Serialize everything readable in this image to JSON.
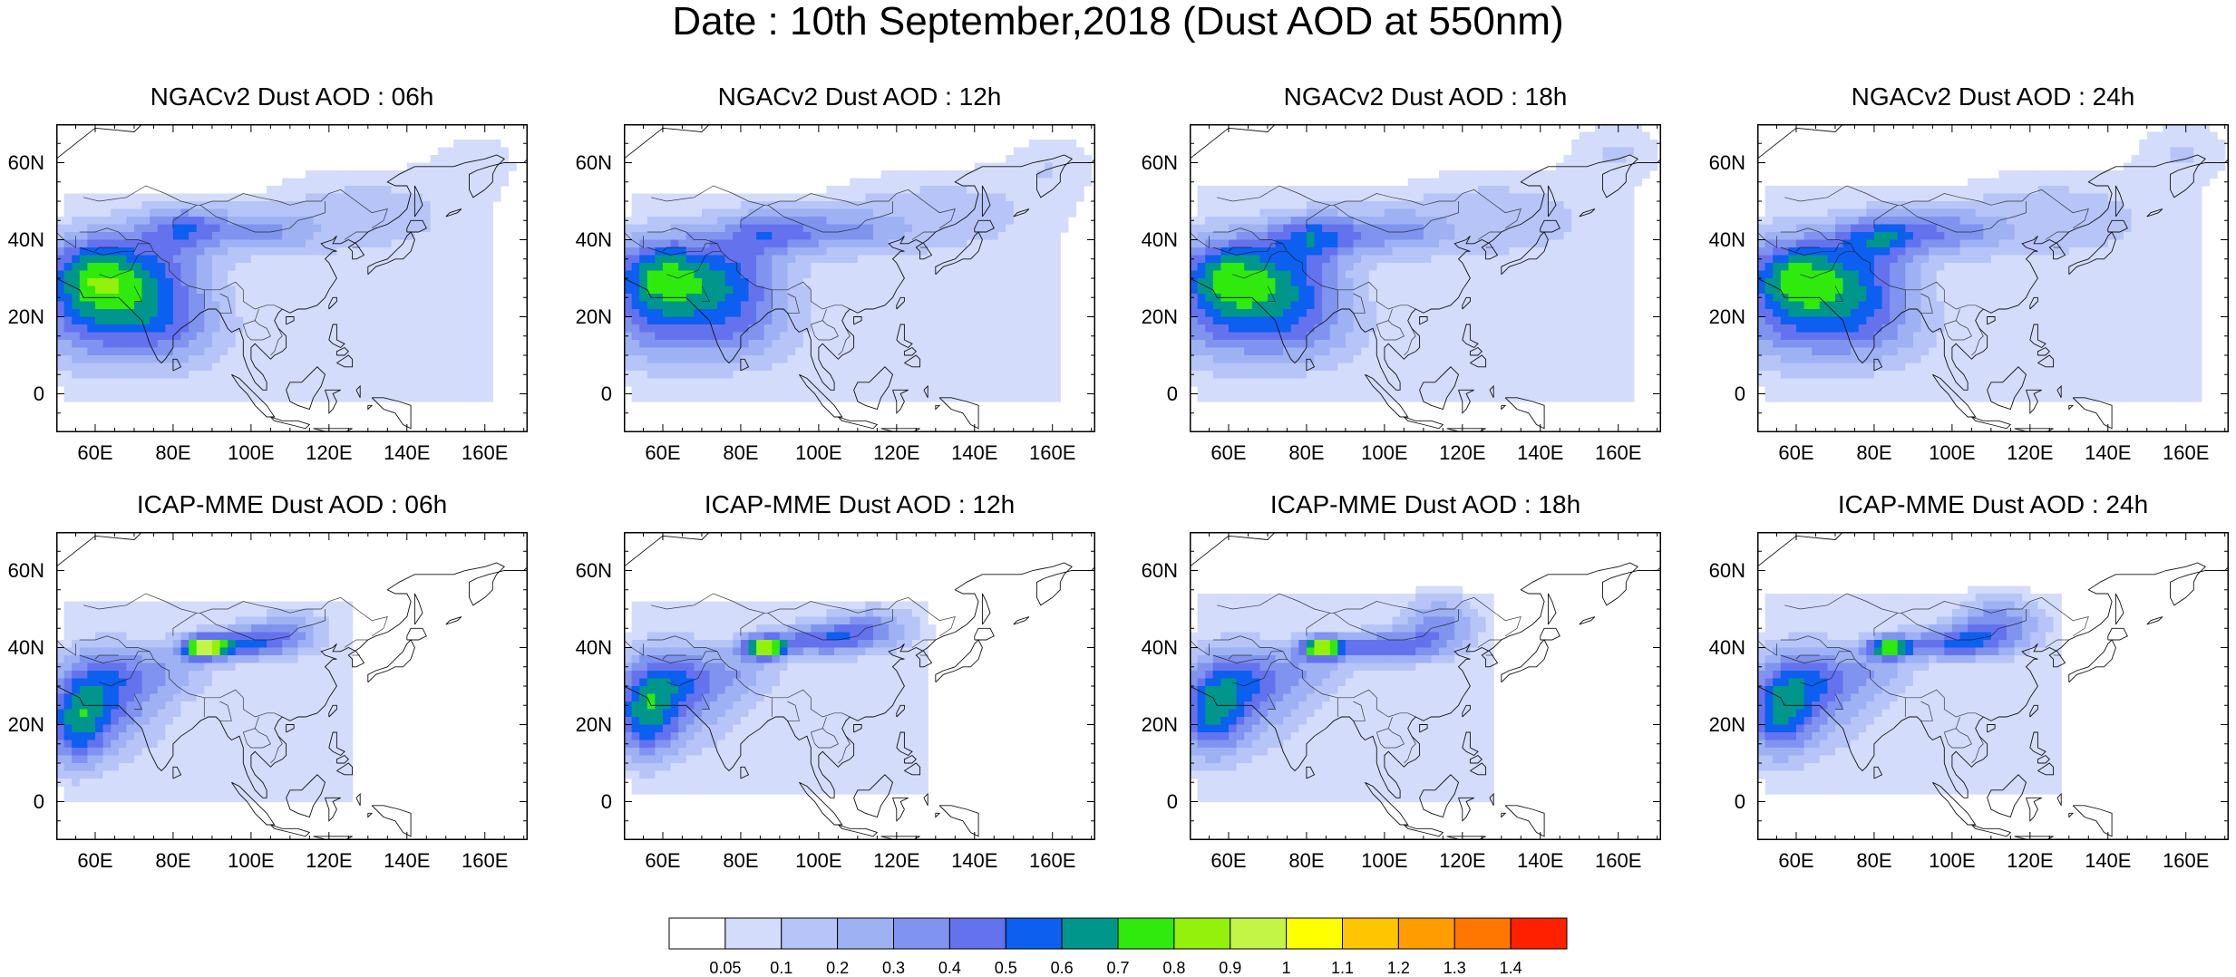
{
  "figure": {
    "title": "Date : 10th September,2018 (Dust AOD at 550nm)"
  },
  "map_extent": {
    "lon": [
      50,
      171
    ],
    "lat": [
      -10,
      70
    ]
  },
  "axes": {
    "x_ticks": [
      "60E",
      "80E",
      "100E",
      "120E",
      "140E",
      "160E"
    ],
    "x_tick_values": [
      60,
      80,
      100,
      120,
      140,
      160
    ],
    "y_ticks": [
      "60N",
      "40N",
      "20N",
      "0"
    ],
    "y_tick_values": [
      60,
      40,
      20,
      0
    ]
  },
  "panels": [
    {
      "title": "NGACv2 Dust AOD : 06h",
      "model": "NGACv2",
      "hour": "06h"
    },
    {
      "title": "NGACv2 Dust AOD : 12h",
      "model": "NGACv2",
      "hour": "12h"
    },
    {
      "title": "NGACv2 Dust AOD : 18h",
      "model": "NGACv2",
      "hour": "18h"
    },
    {
      "title": "NGACv2 Dust AOD : 24h",
      "model": "NGACv2",
      "hour": "24h"
    },
    {
      "title": "ICAP-MME Dust AOD : 06h",
      "model": "ICAP-MME",
      "hour": "06h"
    },
    {
      "title": "ICAP-MME Dust AOD : 12h",
      "model": "ICAP-MME",
      "hour": "12h"
    },
    {
      "title": "ICAP-MME Dust AOD : 18h",
      "model": "ICAP-MME",
      "hour": "18h"
    },
    {
      "title": "ICAP-MME Dust AOD : 24h",
      "model": "ICAP-MME",
      "hour": "24h"
    }
  ],
  "colorbar": {
    "labels": [
      "0.05",
      "0.1",
      "0.2",
      "0.3",
      "0.4",
      "0.5",
      "0.6",
      "0.7",
      "0.8",
      "0.9",
      "1",
      "1.1",
      "1.2",
      "1.3",
      "1.4"
    ],
    "colors": [
      "#ffffff",
      "#d4dcfb",
      "#b6c4f7",
      "#9eb1f3",
      "#7f93ef",
      "#6572ee",
      "#0c5fef",
      "#00968c",
      "#2fea0c",
      "#94f10c",
      "#c3f546",
      "#ffff00",
      "#ffc600",
      "#ff9d00",
      "#ff7600",
      "#ff2000"
    ]
  },
  "colors": {
    "coast": "#111111",
    "frame": "#000000"
  }
}
